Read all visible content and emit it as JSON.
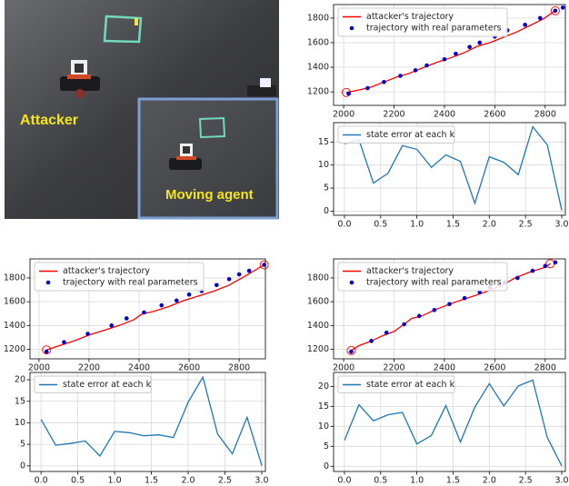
{
  "photo": {
    "labels": [
      "Attacker",
      "Moving agent"
    ]
  },
  "chart_data": [
    {
      "type": "line",
      "grid": true,
      "legend": "upper left",
      "xlim": [
        1960,
        2880
      ],
      "xticks": [
        2000,
        2200,
        2400,
        2600,
        2800
      ],
      "ylim": [
        1090,
        1910
      ],
      "yticks": [
        1200,
        1400,
        1600,
        1800
      ],
      "series": [
        {
          "name": "attacker's trajectory",
          "type": "line",
          "color": "#ff0000",
          "mark_ends": true,
          "x": [
            2010,
            2060,
            2110,
            2160,
            2210,
            2260,
            2320,
            2370,
            2430,
            2480,
            2530,
            2580,
            2630,
            2690,
            2740,
            2790,
            2840
          ],
          "values": [
            1195,
            1215,
            1240,
            1280,
            1320,
            1350,
            1400,
            1440,
            1480,
            1520,
            1570,
            1600,
            1640,
            1690,
            1740,
            1790,
            1860
          ]
        },
        {
          "name": "trajectory with real parameters",
          "type": "scatter",
          "color": "#0000cc",
          "x": [
            2020,
            2095,
            2160,
            2225,
            2285,
            2330,
            2400,
            2445,
            2500,
            2540,
            2600,
            2650,
            2720,
            2780,
            2840,
            2870
          ],
          "values": [
            1185,
            1230,
            1280,
            1330,
            1375,
            1415,
            1465,
            1510,
            1565,
            1600,
            1650,
            1700,
            1745,
            1800,
            1860,
            1885
          ]
        }
      ]
    },
    {
      "type": "line",
      "grid": true,
      "legend": "upper left",
      "xlim": [
        -0.15,
        3.05
      ],
      "xticks": [
        {
          "value": 0,
          "label": "0.0"
        },
        {
          "value": 0.5,
          "label": "0.5"
        },
        {
          "value": 1,
          "label": "1.0"
        },
        {
          "value": 1.5,
          "label": "1.5"
        },
        {
          "value": 2,
          "label": "2.0"
        },
        {
          "value": 2.5,
          "label": "2.5"
        },
        {
          "value": 3,
          "label": "3.0"
        }
      ],
      "ylim": [
        -0.9,
        19.2
      ],
      "yticks": [
        0,
        5,
        10,
        15
      ],
      "series": [
        {
          "name": "state error at each k",
          "type": "line",
          "color": "#1f77b4",
          "x": [
            0,
            0.2,
            0.4,
            0.6,
            0.8,
            1,
            1.2,
            1.4,
            1.6,
            1.8,
            2,
            2.2,
            2.4,
            2.6,
            2.8,
            3
          ],
          "values": [
            14.6,
            15.5,
            6.1,
            8.2,
            14.2,
            13.4,
            9.5,
            12.2,
            10.8,
            1.7,
            11.8,
            10.6,
            7.9,
            18.3,
            14.4,
            0.2
          ]
        }
      ]
    },
    {
      "type": "line",
      "grid": true,
      "legend": "upper left",
      "xlim": [
        1964,
        2905
      ],
      "xticks": [
        2000,
        2200,
        2400,
        2600,
        2800
      ],
      "ylim": [
        1120,
        1960
      ],
      "yticks": [
        1200,
        1400,
        1600,
        1800
      ],
      "series": [
        {
          "name": "attacker's trajectory",
          "type": "line",
          "color": "#ff0000",
          "mark_ends": true,
          "x": [
            2030,
            2080,
            2140,
            2200,
            2260,
            2320,
            2380,
            2410,
            2460,
            2520,
            2580,
            2640,
            2700,
            2760,
            2820,
            2900
          ],
          "values": [
            1195,
            1230,
            1270,
            1320,
            1360,
            1400,
            1450,
            1495,
            1520,
            1560,
            1610,
            1650,
            1690,
            1740,
            1810,
            1910
          ]
        },
        {
          "name": "trajectory with real parameters",
          "type": "scatter",
          "color": "#0000cc",
          "x": [
            2030,
            2100,
            2195,
            2290,
            2350,
            2420,
            2490,
            2550,
            2600,
            2650,
            2710,
            2760,
            2800,
            2840,
            2900
          ],
          "values": [
            1180,
            1260,
            1330,
            1400,
            1460,
            1510,
            1570,
            1610,
            1660,
            1690,
            1740,
            1790,
            1830,
            1860,
            1910
          ]
        }
      ]
    },
    {
      "type": "line",
      "grid": true,
      "legend": "upper left",
      "xlim": [
        -0.15,
        3.05
      ],
      "xticks": [
        {
          "value": 0,
          "label": "0.0"
        },
        {
          "value": 0.5,
          "label": "0.5"
        },
        {
          "value": 1,
          "label": "1.0"
        },
        {
          "value": 1.5,
          "label": "1.5"
        },
        {
          "value": 2,
          "label": "2.0"
        },
        {
          "value": 2.5,
          "label": "2.5"
        },
        {
          "value": 3,
          "label": "3.0"
        }
      ],
      "ylim": [
        -1.3,
        21.7
      ],
      "yticks": [
        0,
        5,
        10,
        15,
        20
      ],
      "series": [
        {
          "name": "state error at each k",
          "type": "line",
          "color": "#1f77b4",
          "x": [
            0,
            0.2,
            0.4,
            0.6,
            0.8,
            1,
            1.2,
            1.4,
            1.6,
            1.8,
            2,
            2.2,
            2.4,
            2.6,
            2.8,
            3
          ],
          "values": [
            10.8,
            4.8,
            5.2,
            5.8,
            2.3,
            8.0,
            7.7,
            7.0,
            7.2,
            6.6,
            14.8,
            20.6,
            7.4,
            2.8,
            11.3,
            0.1
          ]
        }
      ]
    },
    {
      "type": "line",
      "grid": true,
      "legend": "upper left",
      "xlim": [
        1960,
        2880
      ],
      "xticks": [
        2000,
        2200,
        2400,
        2600,
        2800
      ],
      "ylim": [
        1120,
        1960
      ],
      "yticks": [
        1200,
        1400,
        1600,
        1800
      ],
      "series": [
        {
          "name": "attacker's trajectory",
          "type": "line",
          "color": "#ff0000",
          "mark_ends": true,
          "x": [
            2030,
            2060,
            2110,
            2150,
            2200,
            2240,
            2270,
            2310,
            2360,
            2420,
            2490,
            2560,
            2630,
            2680,
            2740,
            2800,
            2820
          ],
          "values": [
            1190,
            1230,
            1270,
            1310,
            1350,
            1410,
            1460,
            1480,
            1530,
            1580,
            1630,
            1680,
            1740,
            1800,
            1850,
            1890,
            1920
          ]
        },
        {
          "name": "trajectory with real parameters",
          "type": "scatter",
          "color": "#0000cc",
          "x": [
            2030,
            2110,
            2170,
            2240,
            2300,
            2360,
            2420,
            2480,
            2540,
            2580,
            2640,
            2690,
            2750,
            2800,
            2840
          ],
          "values": [
            1180,
            1270,
            1340,
            1410,
            1480,
            1530,
            1580,
            1630,
            1680,
            1720,
            1760,
            1800,
            1860,
            1900,
            1930
          ]
        }
      ]
    },
    {
      "type": "line",
      "grid": true,
      "legend": "upper left",
      "xlim": [
        -0.15,
        3.05
      ],
      "xticks": [
        {
          "value": 0,
          "label": "0.0"
        },
        {
          "value": 0.5,
          "label": "0.5"
        },
        {
          "value": 1,
          "label": "1.0"
        },
        {
          "value": 1.5,
          "label": "1.5"
        },
        {
          "value": 2,
          "label": "2.0"
        },
        {
          "value": 2.5,
          "label": "2.5"
        },
        {
          "value": 3,
          "label": "3.0"
        }
      ],
      "ylim": [
        -1.3,
        23.5
      ],
      "yticks": [
        0,
        5,
        10,
        15,
        20
      ],
      "series": [
        {
          "name": "state error at each k",
          "type": "line",
          "color": "#1f77b4",
          "x": [
            0,
            0.2,
            0.4,
            0.6,
            0.8,
            1,
            1.2,
            1.4,
            1.6,
            1.8,
            2,
            2.2,
            2.4,
            2.6,
            2.8,
            3
          ],
          "values": [
            6.5,
            15.4,
            11.4,
            12.9,
            13.5,
            5.6,
            7.7,
            15.2,
            6.1,
            14.8,
            20.7,
            15.1,
            20.1,
            21.6,
            7.2,
            0.1
          ]
        }
      ]
    }
  ]
}
